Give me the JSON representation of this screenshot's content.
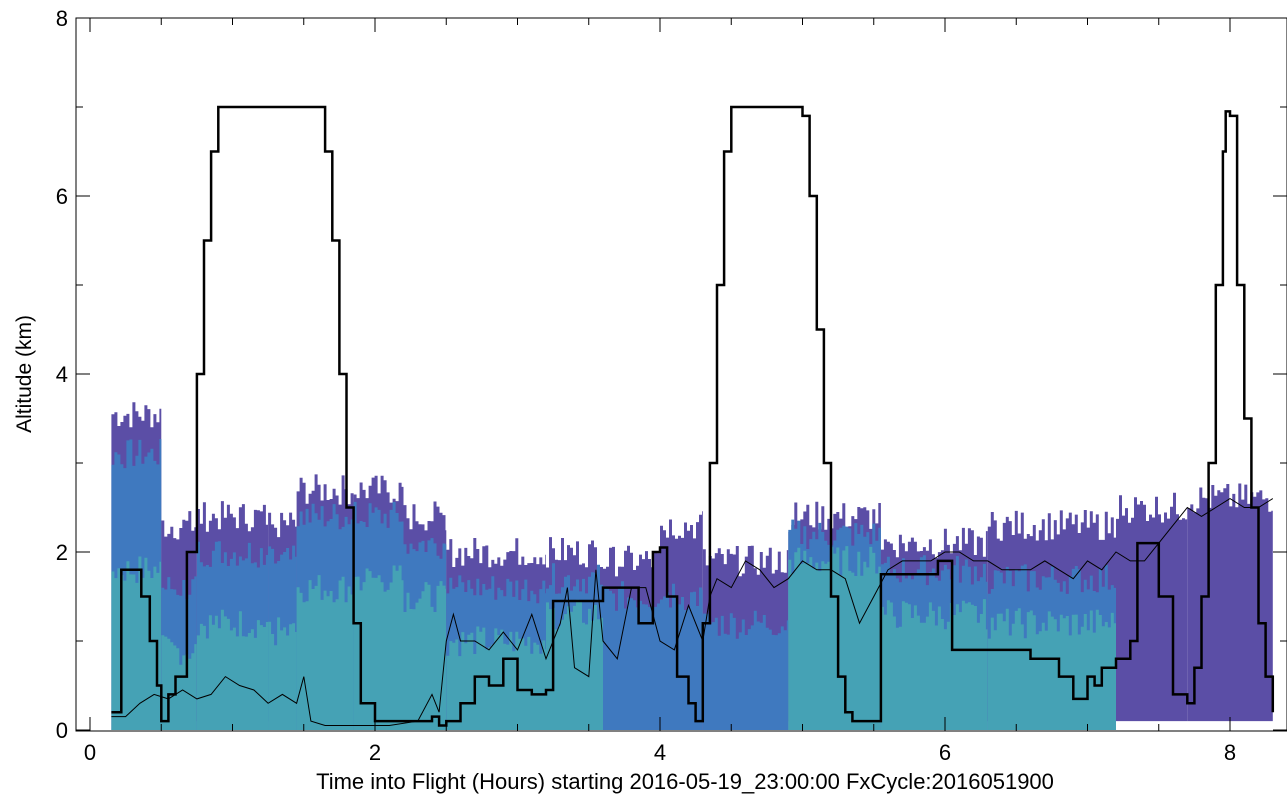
{
  "chart_data": {
    "type": "line",
    "xlabel": "Time into Flight (Hours) starting 2016-05-19_23:00:00  FxCycle:2016051900",
    "ylabel": "Altitude (km)",
    "xlim": [
      0,
      8.4
    ],
    "ylim": [
      0,
      8
    ],
    "xticks": [
      0,
      2,
      4,
      6,
      8
    ],
    "xtick_labels": [
      "0",
      "2",
      "4",
      "6",
      "8"
    ],
    "yticks": [
      0,
      2,
      4,
      6,
      8
    ],
    "ytick_labels": [
      "0",
      "2",
      "4",
      "6",
      "8"
    ],
    "grid": false,
    "legend": "none",
    "colors": {
      "line": "#000000",
      "fill_light": "#45a2b5",
      "fill_mid": "#3f79bf",
      "fill_dark": "#5b4ea6"
    },
    "background_bands": [
      {
        "x": [
          0.15,
          0.5
        ],
        "levels": [
          1.8,
          3.1,
          3.55
        ],
        "base": 0.0
      },
      {
        "x": [
          0.5,
          0.75
        ],
        "levels": [
          0.9,
          1.6,
          2.3
        ],
        "base": 0.1
      },
      {
        "x": [
          0.75,
          1.25
        ],
        "levels": [
          1.2,
          2.0,
          2.4
        ],
        "base": 0.1
      },
      {
        "x": [
          1.25,
          1.45
        ],
        "levels": [
          1.1,
          1.9,
          2.3
        ],
        "base": 0.1
      },
      {
        "x": [
          1.45,
          1.85
        ],
        "levels": [
          1.6,
          2.4,
          2.7
        ],
        "base": 0.0
      },
      {
        "x": [
          1.85,
          2.2
        ],
        "levels": [
          1.7,
          2.4,
          2.7
        ],
        "base": 0.0
      },
      {
        "x": [
          2.2,
          2.5
        ],
        "levels": [
          1.5,
          2.1,
          2.4
        ],
        "base": 0.0
      },
      {
        "x": [
          2.5,
          3.2
        ],
        "levels": [
          1.0,
          1.6,
          2.0
        ],
        "base": 0.0
      },
      {
        "x": [
          3.2,
          3.6
        ],
        "levels": [
          1.3,
          1.7,
          2.0
        ],
        "base": 0.0
      },
      {
        "x": [
          3.6,
          4.0
        ],
        "levels": [
          0.0,
          1.5,
          1.9
        ],
        "base": 0.0
      },
      {
        "x": [
          4.0,
          4.3
        ],
        "levels": [
          0.0,
          1.5,
          2.3
        ],
        "base": 0.0
      },
      {
        "x": [
          4.3,
          4.9
        ],
        "levels": [
          0.0,
          1.2,
          1.9
        ],
        "base": 0.0
      },
      {
        "x": [
          4.9,
          5.55
        ],
        "levels": [
          1.9,
          2.2,
          2.4
        ],
        "base": 0.1
      },
      {
        "x": [
          5.55,
          6.3
        ],
        "levels": [
          1.3,
          1.8,
          2.1
        ],
        "base": 0.1
      },
      {
        "x": [
          6.3,
          7.2
        ],
        "levels": [
          1.2,
          1.7,
          2.3
        ],
        "base": 0.1
      },
      {
        "x": [
          7.2,
          7.7
        ],
        "levels": [
          0.0,
          0.0,
          2.5
        ],
        "base": 0.1
      },
      {
        "x": [
          7.7,
          8.3
        ],
        "levels": [
          0.0,
          0.0,
          2.6
        ],
        "base": 0.1
      }
    ],
    "series": [
      {
        "style": "thick",
        "x": [
          0.15,
          0.22,
          0.3,
          0.36,
          0.42,
          0.47,
          0.5,
          0.55,
          0.6,
          0.68,
          0.75,
          0.8,
          0.85,
          0.9,
          0.95,
          1.0,
          1.6,
          1.65,
          1.7,
          1.75,
          1.8,
          1.85,
          1.9,
          2.0,
          2.2,
          2.4,
          2.45,
          2.5,
          2.6,
          2.7,
          2.8,
          2.9,
          3.0,
          3.1,
          3.2,
          3.25,
          3.4,
          3.55,
          3.6,
          3.7,
          3.8,
          3.85,
          3.95,
          4.0,
          4.05,
          4.12,
          4.2,
          4.25,
          4.3,
          4.35,
          4.4,
          4.45,
          4.5,
          4.55,
          4.95,
          5.0,
          5.05,
          5.1,
          5.15,
          5.2,
          5.25,
          5.3,
          5.35,
          5.4,
          5.5,
          5.55,
          5.6,
          5.9,
          5.95,
          6.0,
          6.05,
          6.1,
          6.5,
          6.6,
          6.7,
          6.8,
          6.9,
          7.0,
          7.05,
          7.1,
          7.2,
          7.3,
          7.35,
          7.45,
          7.5,
          7.6,
          7.7,
          7.75,
          7.8,
          7.85,
          7.9,
          7.95,
          7.97,
          8.0,
          8.05,
          8.1,
          8.15,
          8.2,
          8.25,
          8.3
        ],
        "y": [
          0.2,
          1.8,
          1.8,
          1.5,
          1.0,
          0.5,
          0.1,
          0.4,
          0.6,
          2.0,
          4.0,
          5.5,
          6.5,
          7.0,
          7.0,
          7.0,
          7.0,
          6.5,
          5.5,
          4.0,
          2.5,
          1.2,
          0.3,
          0.1,
          0.1,
          0.15,
          0.05,
          0.1,
          0.3,
          0.6,
          0.5,
          0.8,
          0.45,
          0.4,
          0.45,
          1.45,
          1.45,
          1.45,
          1.6,
          1.6,
          1.6,
          1.2,
          2.0,
          2.05,
          1.5,
          0.6,
          0.3,
          0.1,
          1.2,
          3.0,
          5.0,
          6.5,
          7.0,
          7.0,
          7.0,
          6.9,
          6.0,
          4.5,
          3.0,
          1.5,
          0.6,
          0.2,
          0.1,
          0.1,
          0.1,
          1.75,
          1.75,
          1.75,
          1.9,
          1.9,
          0.9,
          0.9,
          0.9,
          0.8,
          0.8,
          0.6,
          0.35,
          0.6,
          0.5,
          0.7,
          0.8,
          1.0,
          2.1,
          2.1,
          1.5,
          0.4,
          0.3,
          0.7,
          1.5,
          3.0,
          5.0,
          6.5,
          6.95,
          6.9,
          5.0,
          3.5,
          2.5,
          1.2,
          0.6,
          0.2
        ]
      },
      {
        "style": "thin",
        "x": [
          0.15,
          0.25,
          0.35,
          0.45,
          0.55,
          0.65,
          0.75,
          0.85,
          0.95,
          1.05,
          1.15,
          1.25,
          1.35,
          1.45,
          1.5,
          1.55,
          1.65,
          1.75,
          1.9,
          2.1,
          2.3,
          2.4,
          2.45,
          2.5,
          2.55,
          2.6,
          2.7,
          2.8,
          2.9,
          3.0,
          3.1,
          3.2,
          3.3,
          3.35,
          3.4,
          3.5,
          3.55,
          3.6,
          3.7,
          3.8,
          3.9,
          4.0,
          4.1,
          4.2,
          4.3,
          4.35,
          4.4,
          4.5,
          4.6,
          4.7,
          4.8,
          4.9,
          5.0,
          5.1,
          5.2,
          5.3,
          5.4,
          5.5,
          5.6,
          5.7,
          5.8,
          5.9,
          6.0,
          6.1,
          6.2,
          6.3,
          6.4,
          6.5,
          6.6,
          6.7,
          6.8,
          6.9,
          7.0,
          7.1,
          7.2,
          7.3,
          7.4,
          7.5,
          7.6,
          7.7,
          7.8,
          7.9,
          8.0,
          8.1,
          8.2,
          8.3
        ],
        "y": [
          0.15,
          0.15,
          0.3,
          0.4,
          0.35,
          0.45,
          0.35,
          0.4,
          0.6,
          0.5,
          0.45,
          0.3,
          0.4,
          0.3,
          0.6,
          0.1,
          0.05,
          0.05,
          0.05,
          0.05,
          0.1,
          0.4,
          0.2,
          1.0,
          1.3,
          1.0,
          1.0,
          0.9,
          1.1,
          0.9,
          1.3,
          0.8,
          1.2,
          1.6,
          0.7,
          0.6,
          1.8,
          1.0,
          0.8,
          1.6,
          1.6,
          1.0,
          0.9,
          1.4,
          1.0,
          1.5,
          1.7,
          1.6,
          1.9,
          1.8,
          1.6,
          1.7,
          1.9,
          1.8,
          1.8,
          1.7,
          1.2,
          1.5,
          1.8,
          1.9,
          1.9,
          1.9,
          2.0,
          2.0,
          1.9,
          1.9,
          1.8,
          1.8,
          1.8,
          1.9,
          1.8,
          1.7,
          1.9,
          1.8,
          2.0,
          1.9,
          1.9,
          2.1,
          2.3,
          2.5,
          2.4,
          2.5,
          2.6,
          2.5,
          2.5,
          2.6
        ]
      }
    ]
  }
}
